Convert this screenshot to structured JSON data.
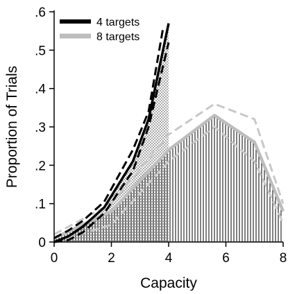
{
  "chart_data": {
    "type": "line",
    "xlabel": "Capacity",
    "ylabel": "Proportion of Trials",
    "xlim": [
      0,
      8
    ],
    "ylim": [
      0,
      0.6
    ],
    "x_ticks": [
      0,
      2,
      4,
      6,
      8
    ],
    "x_tick_labels": [
      "0",
      "2",
      "4",
      "6",
      "8"
    ],
    "y_ticks": [
      0,
      0.1,
      0.2,
      0.3,
      0.4,
      0.5,
      0.6
    ],
    "y_tick_labels": [
      "0",
      ".1",
      ".2",
      ".3",
      ".4",
      ".5",
      ".6"
    ],
    "grid": false,
    "legend_position": "top-left",
    "series": [
      {
        "name": "4 targets",
        "color": "#000000",
        "style": "solid",
        "fill": "stippled",
        "x": [
          0,
          0.5,
          1,
          1.75,
          2.75,
          3.3,
          4
        ],
        "y": [
          0,
          0.015,
          0.04,
          0.09,
          0.21,
          0.32,
          0.57
        ]
      },
      {
        "name": "",
        "color": "#000000",
        "style": "dashed",
        "x": [
          0,
          0.5,
          1,
          1.75,
          2.75,
          3.3,
          3.8
        ],
        "y": [
          0.01,
          0.03,
          0.055,
          0.105,
          0.24,
          0.34,
          0.555
        ]
      },
      {
        "name": "",
        "color": "#000000",
        "style": "dashed",
        "x": [
          0,
          0.5,
          1,
          1.75,
          2.75,
          3.3,
          4
        ],
        "y": [
          0,
          0.005,
          0.025,
          0.075,
          0.185,
          0.3,
          0.52
        ]
      },
      {
        "name": "8 targets",
        "color": "#bdbdbd",
        "style": "solid",
        "fill": "vertical-hatch",
        "x": [
          0,
          2,
          4,
          5.6,
          7,
          8
        ],
        "y": [
          0.01,
          0.08,
          0.24,
          0.33,
          0.26,
          0.08
        ]
      },
      {
        "name": "",
        "color": "#c8c8c8",
        "style": "dashed",
        "x": [
          0,
          2,
          4,
          5.6,
          7,
          8
        ],
        "y": [
          0.02,
          0.1,
          0.28,
          0.36,
          0.32,
          0.1
        ]
      },
      {
        "name": "",
        "color": "#c8c8c8",
        "style": "dashed",
        "x": [
          0,
          2,
          4,
          5.6,
          7,
          8
        ],
        "y": [
          0.0,
          0.045,
          0.21,
          0.3,
          0.21,
          0.05
        ]
      }
    ]
  }
}
